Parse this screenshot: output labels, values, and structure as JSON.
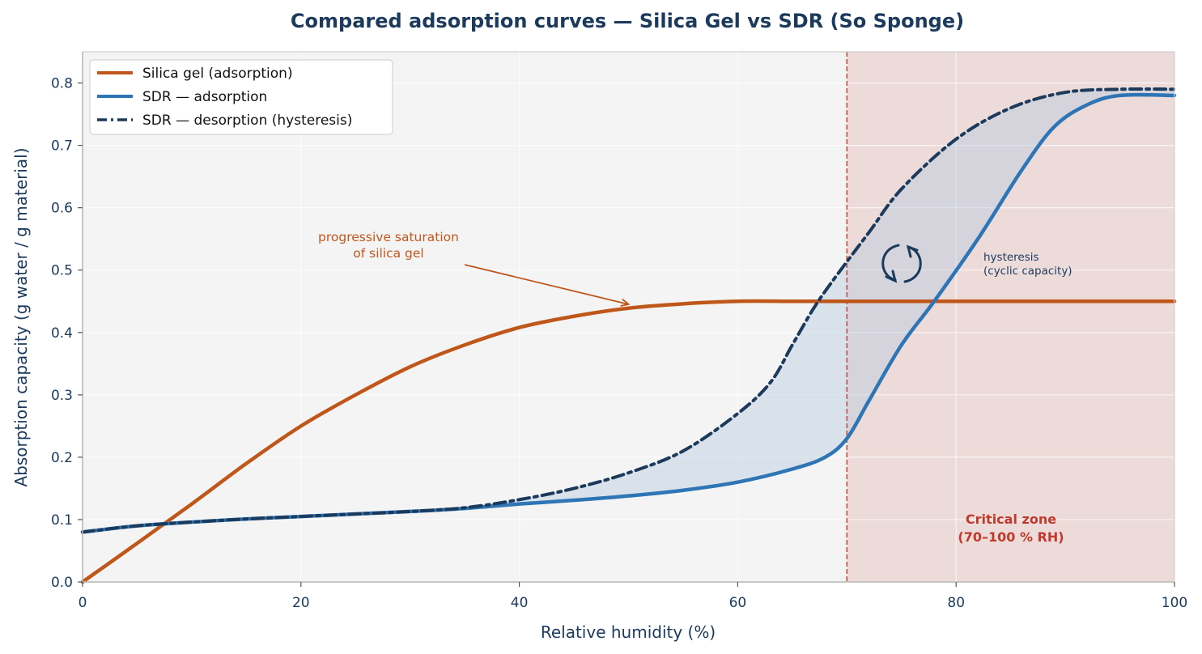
{
  "colors": {
    "silica": "#c0571a",
    "sdr_ads": "#2e75b6",
    "sdr_des": "#1b3a5c",
    "critical_fill": "#e8c7c5",
    "critical_line": "#c0392b",
    "hysteresis_fill": "#b9cbe0",
    "plot_bg": "#f4f4f4"
  },
  "chart_data": {
    "type": "line",
    "title": "Compared adsorption curves — Silica Gel vs SDR (So Sponge)",
    "xlabel": "Relative humidity (%)",
    "ylabel": "Absorption capacity (g water / g material)",
    "xlim": [
      0,
      100
    ],
    "ylim": [
      0,
      0.85
    ],
    "xticks": [
      0,
      20,
      40,
      60,
      80,
      100
    ],
    "yticks": [
      0.0,
      0.1,
      0.2,
      0.3,
      0.4,
      0.5,
      0.6,
      0.7,
      0.8
    ],
    "xtick_labels": [
      "0",
      "20",
      "40",
      "60",
      "80",
      "100"
    ],
    "ytick_labels": [
      "0.0",
      "0.1",
      "0.2",
      "0.3",
      "0.4",
      "0.5",
      "0.6",
      "0.7",
      "0.8"
    ],
    "grid": true,
    "legend_position": "top-left",
    "series": [
      {
        "name": "Silica gel (adsorption)",
        "style": "solid",
        "color_key": "silica",
        "x": [
          0,
          5,
          10,
          15,
          20,
          25,
          30,
          35,
          40,
          45,
          50,
          55,
          60,
          65,
          70,
          80,
          90,
          100
        ],
        "y": [
          0.0,
          0.062,
          0.125,
          0.19,
          0.25,
          0.3,
          0.345,
          0.38,
          0.408,
          0.426,
          0.439,
          0.446,
          0.45,
          0.45,
          0.45,
          0.45,
          0.45,
          0.45
        ]
      },
      {
        "name": "SDR — adsorption",
        "style": "solid",
        "color_key": "sdr_ads",
        "x": [
          0,
          5,
          10,
          15,
          20,
          25,
          30,
          35,
          40,
          45,
          50,
          55,
          60,
          65,
          68,
          70,
          72,
          75,
          78,
          82,
          86,
          89,
          92,
          95,
          100
        ],
        "y": [
          0.08,
          0.09,
          0.096,
          0.101,
          0.105,
          0.109,
          0.113,
          0.118,
          0.125,
          0.131,
          0.138,
          0.147,
          0.16,
          0.181,
          0.2,
          0.23,
          0.29,
          0.38,
          0.45,
          0.55,
          0.66,
          0.73,
          0.765,
          0.78,
          0.78
        ]
      },
      {
        "name": "SDR — desorption (hysteresis)",
        "style": "dashdot",
        "color_key": "sdr_des",
        "x": [
          0,
          5,
          10,
          15,
          20,
          25,
          30,
          35,
          40,
          45,
          50,
          55,
          60,
          63,
          65,
          67,
          69,
          72,
          75,
          80,
          85,
          90,
          95,
          100
        ],
        "y": [
          0.08,
          0.09,
          0.096,
          0.101,
          0.105,
          0.109,
          0.113,
          0.119,
          0.132,
          0.15,
          0.175,
          0.21,
          0.27,
          0.32,
          0.38,
          0.44,
          0.49,
          0.56,
          0.63,
          0.71,
          0.76,
          0.785,
          0.79,
          0.79
        ]
      }
    ],
    "critical_zone": {
      "x_start": 70,
      "x_end": 100,
      "label_line1": "Critical zone",
      "label_line2": "(70–100 % RH)"
    },
    "annotations": [
      {
        "id": "silica_sat",
        "line1": "progressive saturation",
        "line2": "of silica gel",
        "arrow_to_x": 50,
        "arrow_to_y": 0.44
      },
      {
        "id": "hysteresis",
        "line1": "hysteresis",
        "line2": "(cyclic capacity)"
      }
    ]
  }
}
